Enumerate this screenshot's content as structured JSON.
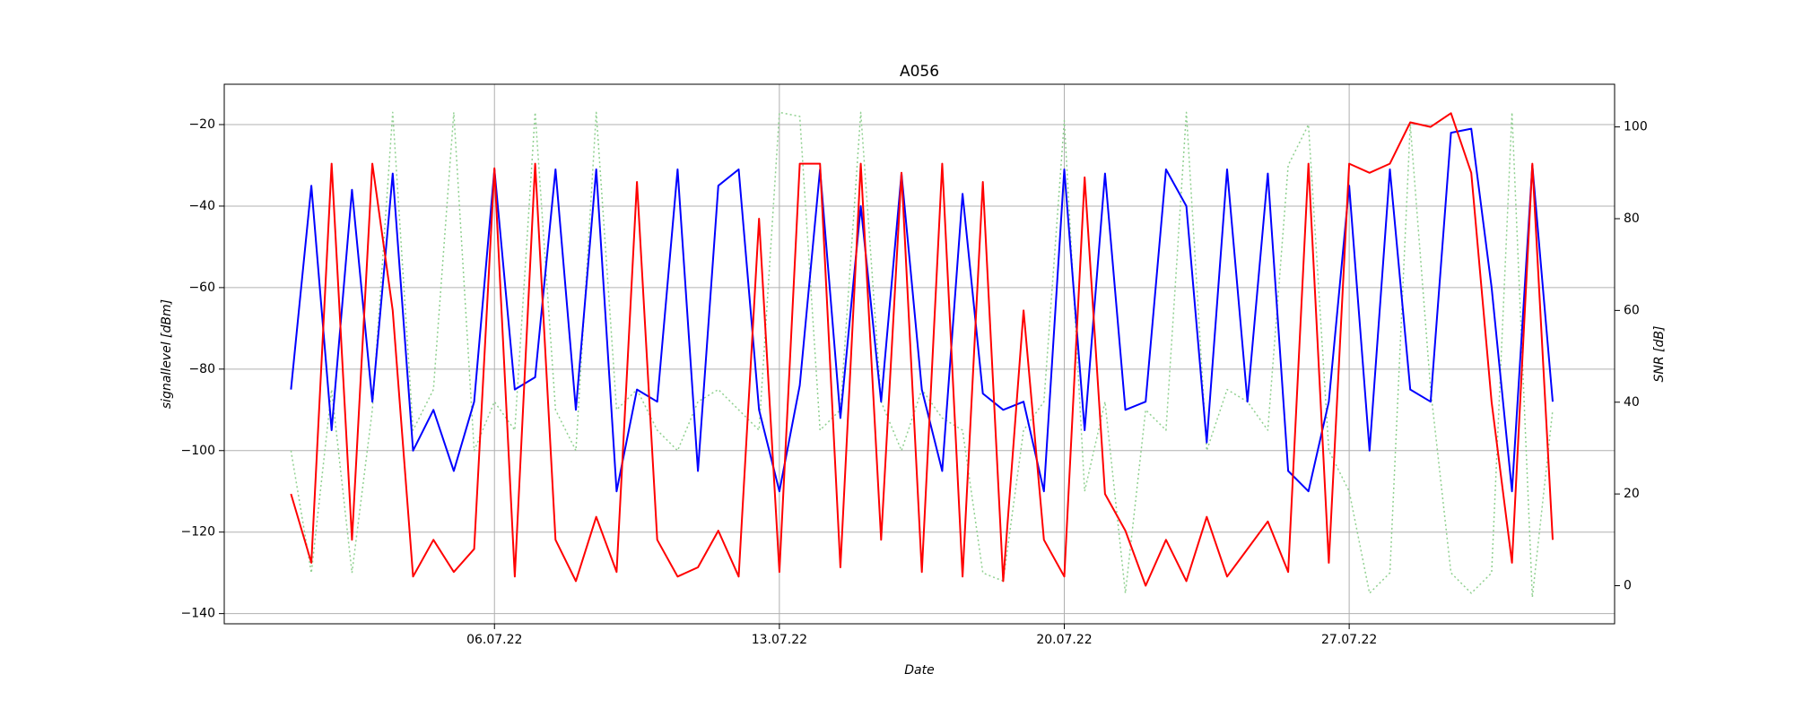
{
  "chart_data": {
    "type": "line",
    "title": "A056",
    "xlabel": "Date",
    "ylabel": "signallevel [dBm]",
    "y2label": "SNR [dB]",
    "x": [
      "2022-07-01T00:00",
      "2022-07-01T12:00",
      "2022-07-02T00:00",
      "2022-07-02T12:00",
      "2022-07-03T00:00",
      "2022-07-03T12:00",
      "2022-07-04T00:00",
      "2022-07-04T12:00",
      "2022-07-05T00:00",
      "2022-07-05T12:00",
      "2022-07-06T00:00",
      "2022-07-06T12:00",
      "2022-07-07T00:00",
      "2022-07-07T12:00",
      "2022-07-08T00:00",
      "2022-07-08T12:00",
      "2022-07-09T00:00",
      "2022-07-09T12:00",
      "2022-07-10T00:00",
      "2022-07-10T12:00",
      "2022-07-11T00:00",
      "2022-07-11T12:00",
      "2022-07-12T00:00",
      "2022-07-12T12:00",
      "2022-07-13T00:00",
      "2022-07-13T12:00",
      "2022-07-14T00:00",
      "2022-07-14T12:00",
      "2022-07-15T00:00",
      "2022-07-15T12:00",
      "2022-07-16T00:00",
      "2022-07-16T12:00",
      "2022-07-17T00:00",
      "2022-07-17T12:00",
      "2022-07-18T00:00",
      "2022-07-18T12:00",
      "2022-07-19T00:00",
      "2022-07-19T12:00",
      "2022-07-20T00:00",
      "2022-07-20T12:00",
      "2022-07-21T00:00",
      "2022-07-21T12:00",
      "2022-07-22T00:00",
      "2022-07-22T12:00",
      "2022-07-23T00:00",
      "2022-07-23T12:00",
      "2022-07-24T00:00",
      "2022-07-24T12:00",
      "2022-07-25T00:00",
      "2022-07-25T12:00",
      "2022-07-26T00:00",
      "2022-07-26T12:00",
      "2022-07-27T00:00",
      "2022-07-27T12:00",
      "2022-07-28T00:00",
      "2022-07-28T12:00",
      "2022-07-29T00:00",
      "2022-07-29T12:00",
      "2022-07-30T00:00",
      "2022-07-30T12:00",
      "2022-07-31T00:00",
      "2022-07-31T12:00",
      "2022-08-01T00:00"
    ],
    "series": [
      {
        "color": "#90d090",
        "linestyle": "dotted",
        "values": [
          -100,
          -130,
          -85,
          -130,
          -90,
          -17,
          -95,
          -85,
          -17,
          -100,
          -88,
          -95,
          -17,
          -90,
          -100,
          -17,
          -90,
          -85,
          -95,
          -100,
          -88,
          -85,
          -90,
          -95,
          -17,
          -18,
          -95,
          -90,
          -17,
          -88,
          -100,
          -85,
          -92,
          -95,
          -130,
          -132,
          -95,
          -88,
          -19,
          -110,
          -88,
          -135,
          -90,
          -95,
          -17,
          -100,
          -85,
          -88,
          -95,
          -30,
          -20,
          -100,
          -110,
          -135,
          -130,
          -20,
          -85,
          -130,
          -135,
          -130,
          -17,
          -136,
          -90
        ]
      },
      {
        "color": "#0000ff",
        "linestyle": "solid",
        "values": [
          -85,
          -35,
          -95,
          -36,
          -88,
          -32,
          -100,
          -90,
          -105,
          -88,
          -31,
          -85,
          -82,
          -31,
          -90,
          -31,
          -110,
          -85,
          -88,
          -31,
          -105,
          -35,
          -31,
          -90,
          -110,
          -84,
          -31,
          -92,
          -40,
          -88,
          -32,
          -85,
          -105,
          -37,
          -86,
          -90,
          -88,
          -110,
          -31,
          -95,
          -32,
          -90,
          -88,
          -31,
          -40,
          -98,
          -31,
          -88,
          -32,
          -105,
          -110,
          -88,
          -35,
          -100,
          -31,
          -85,
          -88,
          -22,
          -21,
          -60,
          -110,
          -30,
          -88
        ]
      },
      {
        "color": "#ff0000",
        "linestyle": "solid",
        "axis": "y2",
        "values": [
          20,
          5,
          92,
          10,
          92,
          60,
          2,
          10,
          3,
          8,
          91,
          2,
          92,
          10,
          1,
          15,
          3,
          88,
          10,
          2,
          4,
          12,
          2,
          80,
          3,
          92,
          92,
          4,
          92,
          10,
          90,
          3,
          92,
          2,
          88,
          1,
          60,
          10,
          2,
          89,
          20,
          12,
          0,
          10,
          1,
          15,
          2,
          8,
          14,
          3,
          92,
          5,
          92,
          90,
          92,
          101,
          100,
          103,
          90,
          40,
          5,
          92,
          10
        ]
      }
    ],
    "xlim": [
      "2022-06-29T08:40",
      "2022-08-02T12:30"
    ],
    "xticks": [
      {
        "value": "2022-07-06T00:00",
        "label": "06.07.22"
      },
      {
        "value": "2022-07-13T00:00",
        "label": "13.07.22"
      },
      {
        "value": "2022-07-20T00:00",
        "label": "20.07.22"
      },
      {
        "value": "2022-07-27T00:00",
        "label": "27.07.22"
      }
    ],
    "ylim": [
      -142.5,
      -10.1
    ],
    "yticks": [
      {
        "value": -140,
        "label": "−140"
      },
      {
        "value": -120,
        "label": "−120"
      },
      {
        "value": -100,
        "label": "−100"
      },
      {
        "value": -80,
        "label": "−80"
      },
      {
        "value": -60,
        "label": "−60"
      },
      {
        "value": -40,
        "label": "−40"
      },
      {
        "value": -20,
        "label": "−20"
      }
    ],
    "y2lim": [
      -8.3,
      109.3
    ],
    "y2ticks": [
      0,
      20,
      40,
      60,
      80,
      100
    ],
    "grid": true
  }
}
